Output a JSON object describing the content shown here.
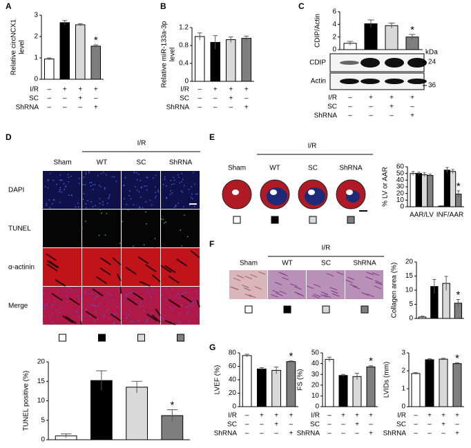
{
  "panels": [
    "A",
    "B",
    "C",
    "D",
    "E",
    "F",
    "G"
  ],
  "groups": [
    "Sham",
    "WT",
    "SC",
    "ShRNA"
  ],
  "group_colors": [
    "#ffffff",
    "#000000",
    "#d9d9d9",
    "#7f7f7f"
  ],
  "conditions": {
    "rows": [
      "I/R",
      "SC",
      "ShRNA"
    ],
    "signs": [
      [
        "–",
        "+",
        "+",
        "+"
      ],
      [
        "–",
        "–",
        "+",
        "–"
      ],
      [
        "–",
        "–",
        "–",
        "+"
      ]
    ]
  },
  "panel_d": {
    "header": "I/R",
    "rows": [
      "DAPI",
      "TUNEL",
      "α-actinin",
      "Merge"
    ]
  },
  "panel_e": {
    "header": "I/R"
  },
  "panel_f": {
    "header": "I/R"
  },
  "blot": {
    "bands": [
      "CDIP",
      "Actin"
    ],
    "unit": "kDa",
    "markers": [
      24,
      36
    ]
  },
  "chart_data": [
    {
      "type": "bar",
      "y_label": [
        "Relative circNCX1",
        "level"
      ],
      "values": [
        0.95,
        2.65,
        2.55,
        1.55
      ],
      "errors": [
        0.05,
        0.1,
        0.05,
        0.06
      ],
      "colors": [
        "#ffffff",
        "#000000",
        "#d9d9d9",
        "#7f7f7f"
      ],
      "ylim": [
        0,
        3
      ],
      "yticks": [
        0,
        1,
        2,
        3
      ],
      "annotations": [
        {
          "text": "*",
          "x": 3
        }
      ],
      "conditions": true
    },
    {
      "type": "bar",
      "y_label": [
        "Relative miR-133a-3p",
        "level"
      ],
      "values": [
        1.0,
        0.87,
        0.93,
        0.96
      ],
      "errors": [
        0.08,
        0.15,
        0.06,
        0.05
      ],
      "colors": [
        "#ffffff",
        "#000000",
        "#d9d9d9",
        "#7f7f7f"
      ],
      "ylim": [
        0,
        1.2
      ],
      "yticks": [
        0,
        0.4,
        0.8,
        1.2
      ],
      "conditions": true
    },
    {
      "type": "bar",
      "y_label": [
        "CDIP/Actin"
      ],
      "values": [
        1.0,
        4.1,
        3.8,
        2.0
      ],
      "errors": [
        0.3,
        0.6,
        0.4,
        0.4
      ],
      "colors": [
        "#ffffff",
        "#000000",
        "#d9d9d9",
        "#7f7f7f"
      ],
      "ylim": [
        0,
        6
      ],
      "yticks": [
        0,
        2,
        4,
        6
      ],
      "annotations": [
        {
          "text": "*",
          "x": 3
        }
      ],
      "conditions": true
    },
    {
      "type": "bar",
      "y_label": [
        "% LV or AAR"
      ],
      "categories": [
        "AAR/LV",
        "INF/AAR"
      ],
      "series": [
        {
          "color": "#ffffff",
          "values": [
            50,
            1
          ],
          "errors": [
            3,
            0.5
          ]
        },
        {
          "color": "#000000",
          "values": [
            50,
            55
          ],
          "errors": [
            2,
            4
          ]
        },
        {
          "color": "#d9d9d9",
          "values": [
            48,
            53
          ],
          "errors": [
            3,
            3
          ]
        },
        {
          "color": "#7f7f7f",
          "values": [
            47,
            19
          ],
          "errors": [
            2,
            5
          ]
        }
      ],
      "ylim": [
        0,
        60
      ],
      "yticks": [
        0,
        10,
        20,
        30,
        40,
        50,
        60
      ],
      "annotations": [
        {
          "text": "*",
          "x": 1,
          "series": 3
        }
      ]
    },
    {
      "type": "bar",
      "y_label": [
        "Collagen area (%)"
      ],
      "values": [
        0.5,
        11.3,
        12.4,
        5.4
      ],
      "errors": [
        0.3,
        2.5,
        2.5,
        1.3
      ],
      "colors": [
        "#ffffff",
        "#000000",
        "#d9d9d9",
        "#7f7f7f"
      ],
      "ylim": [
        0,
        20
      ],
      "yticks": [
        0,
        5,
        10,
        15,
        20
      ],
      "annotations": [
        {
          "text": "*",
          "x": 3
        }
      ]
    },
    {
      "type": "bar",
      "y_label": [
        "TUNEL positive (%)"
      ],
      "values": [
        1.0,
        15.2,
        13.5,
        6.2
      ],
      "errors": [
        0.5,
        2.5,
        1.5,
        1.5
      ],
      "colors": [
        "#ffffff",
        "#000000",
        "#d9d9d9",
        "#7f7f7f"
      ],
      "ylim": [
        0,
        20
      ],
      "yticks": [
        0,
        5,
        10,
        15,
        20
      ],
      "annotations": [
        {
          "text": "*",
          "x": 3
        }
      ]
    },
    {
      "type": "bar",
      "y_label": [
        "LVEF (%)"
      ],
      "values": [
        76,
        56,
        54,
        67
      ],
      "errors": [
        2,
        2,
        5,
        1
      ],
      "colors": [
        "#ffffff",
        "#000000",
        "#d9d9d9",
        "#7f7f7f"
      ],
      "ylim": [
        0,
        80
      ],
      "yticks": [
        0,
        20,
        40,
        60,
        80
      ],
      "annotations": [
        {
          "text": "*",
          "x": 3
        }
      ],
      "conditions": true
    },
    {
      "type": "bar",
      "y_label": [
        "FS (%)"
      ],
      "values": [
        44,
        29,
        28,
        37
      ],
      "errors": [
        2,
        1,
        3,
        1
      ],
      "colors": [
        "#ffffff",
        "#000000",
        "#d9d9d9",
        "#7f7f7f"
      ],
      "ylim": [
        0,
        50
      ],
      "yticks": [
        0,
        10,
        20,
        30,
        40,
        50
      ],
      "annotations": [
        {
          "text": "*",
          "x": 3
        }
      ],
      "conditions": true
    },
    {
      "type": "bar",
      "y_label": [
        "LVIDs (mm)"
      ],
      "values": [
        1.85,
        2.62,
        2.65,
        2.4
      ],
      "errors": [
        0.05,
        0.05,
        0.05,
        0.05
      ],
      "colors": [
        "#ffffff",
        "#000000",
        "#d9d9d9",
        "#7f7f7f"
      ],
      "ylim": [
        0,
        3
      ],
      "yticks": [
        0,
        1,
        2,
        3
      ],
      "annotations": [
        {
          "text": "*",
          "x": 3
        }
      ],
      "conditions": true
    }
  ]
}
